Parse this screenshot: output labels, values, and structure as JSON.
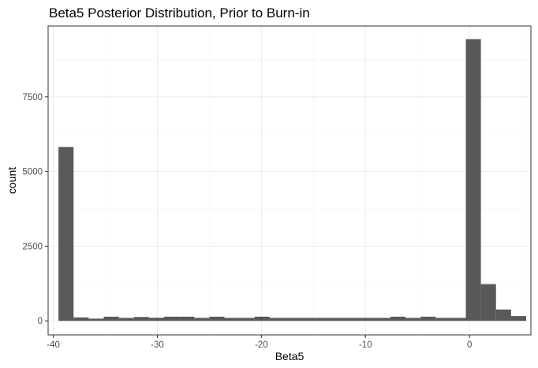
{
  "chart_data": {
    "type": "bar",
    "subtype": "histogram",
    "title": "Beta5 Posterior Distribution, Prior to Burn-in",
    "xlabel": "Beta5",
    "ylabel": "count",
    "xlim": [
      -40.5,
      5.9
    ],
    "ylim": [
      -470,
      9870
    ],
    "bin_width": 1.45,
    "bins": [
      {
        "x": -38.78,
        "count": 5820
      },
      {
        "x": -37.33,
        "count": 115
      },
      {
        "x": -35.88,
        "count": 75
      },
      {
        "x": -34.43,
        "count": 140
      },
      {
        "x": -32.98,
        "count": 100
      },
      {
        "x": -31.53,
        "count": 130
      },
      {
        "x": -30.08,
        "count": 105
      },
      {
        "x": -28.63,
        "count": 140
      },
      {
        "x": -27.18,
        "count": 140
      },
      {
        "x": -25.73,
        "count": 100
      },
      {
        "x": -24.28,
        "count": 140
      },
      {
        "x": -22.83,
        "count": 100
      },
      {
        "x": -21.38,
        "count": 100
      },
      {
        "x": -19.93,
        "count": 140
      },
      {
        "x": -18.48,
        "count": 100
      },
      {
        "x": -17.03,
        "count": 100
      },
      {
        "x": -15.58,
        "count": 100
      },
      {
        "x": -14.13,
        "count": 100
      },
      {
        "x": -12.68,
        "count": 100
      },
      {
        "x": -11.23,
        "count": 100
      },
      {
        "x": -9.78,
        "count": 100
      },
      {
        "x": -8.33,
        "count": 100
      },
      {
        "x": -6.88,
        "count": 140
      },
      {
        "x": -5.43,
        "count": 100
      },
      {
        "x": -3.98,
        "count": 140
      },
      {
        "x": -2.53,
        "count": 100
      },
      {
        "x": -1.08,
        "count": 100
      },
      {
        "x": 0.37,
        "count": 9430
      },
      {
        "x": 1.82,
        "count": 1230
      },
      {
        "x": 3.27,
        "count": 380
      },
      {
        "x": 4.72,
        "count": 160
      }
    ],
    "x_ticks": [
      {
        "value": -40,
        "label": "-40"
      },
      {
        "value": -30,
        "label": "-30"
      },
      {
        "value": -20,
        "label": "-20"
      },
      {
        "value": -10,
        "label": "-10"
      },
      {
        "value": 0,
        "label": "0"
      }
    ],
    "y_ticks": [
      {
        "value": 0,
        "label": "0"
      },
      {
        "value": 2500,
        "label": "2500"
      },
      {
        "value": 5000,
        "label": "5000"
      },
      {
        "value": 7500,
        "label": "7500"
      }
    ],
    "grid": true,
    "bar_color": "#595959",
    "theme": "bw"
  }
}
